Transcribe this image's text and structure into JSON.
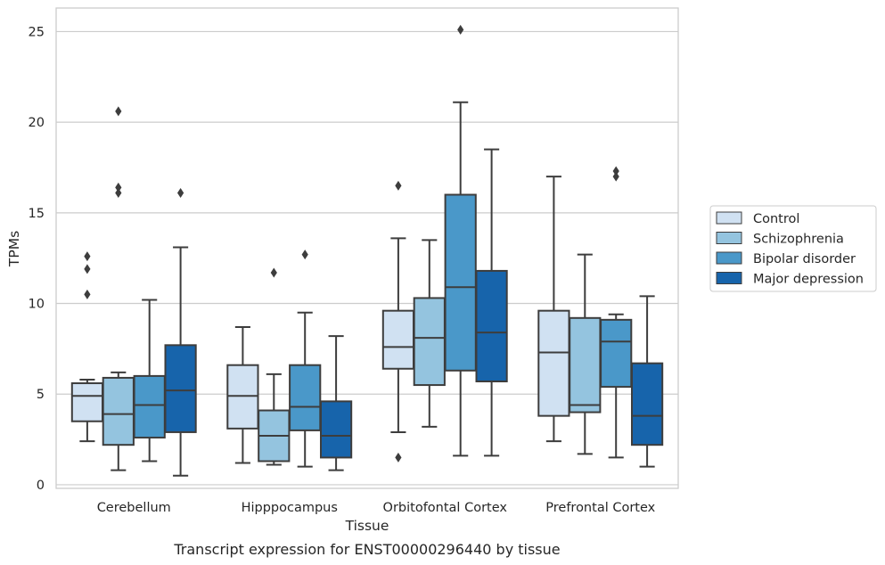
{
  "chart_data": {
    "type": "box",
    "title": "Transcript expression for ENST00000296440 by tissue",
    "xlabel": "Tissue",
    "ylabel": "TPMs",
    "ylim": [
      -0.2,
      26.3
    ],
    "yticks": [
      0,
      5,
      10,
      15,
      20,
      25
    ],
    "grid": "horizontal",
    "legend_position": "right",
    "categories": [
      "Cerebellum",
      "Hipppocampus",
      "Orbitofontal Cortex",
      "Prefrontal Cortex"
    ],
    "series": [
      {
        "name": "Control",
        "color": "#d0e1f2",
        "boxes": [
          {
            "whislo": 2.4,
            "q1": 3.5,
            "med": 4.9,
            "q3": 5.6,
            "whishi": 5.8,
            "fliers": [
              10.5,
              11.9,
              12.6
            ]
          },
          {
            "whislo": 1.2,
            "q1": 3.1,
            "med": 4.9,
            "q3": 6.6,
            "whishi": 8.7,
            "fliers": []
          },
          {
            "whislo": 2.9,
            "q1": 6.4,
            "med": 7.6,
            "q3": 9.6,
            "whishi": 13.6,
            "fliers": [
              1.5,
              16.5
            ]
          },
          {
            "whislo": 2.4,
            "q1": 3.8,
            "med": 7.3,
            "q3": 9.6,
            "whishi": 17.0,
            "fliers": []
          }
        ]
      },
      {
        "name": "Schizophrenia",
        "color": "#94c4df",
        "boxes": [
          {
            "whislo": 0.8,
            "q1": 2.2,
            "med": 3.9,
            "q3": 5.9,
            "whishi": 6.2,
            "fliers": [
              16.1,
              16.4,
              20.6
            ]
          },
          {
            "whislo": 1.1,
            "q1": 1.3,
            "med": 2.7,
            "q3": 4.1,
            "whishi": 6.1,
            "fliers": [
              11.7
            ]
          },
          {
            "whislo": 3.2,
            "q1": 5.5,
            "med": 8.1,
            "q3": 10.3,
            "whishi": 13.5,
            "fliers": []
          },
          {
            "whislo": 1.7,
            "q1": 4.0,
            "med": 4.4,
            "q3": 9.2,
            "whishi": 12.7,
            "fliers": []
          }
        ]
      },
      {
        "name": "Bipolar disorder",
        "color": "#4a98c9",
        "boxes": [
          {
            "whislo": 1.3,
            "q1": 2.6,
            "med": 4.4,
            "q3": 6.0,
            "whishi": 10.2,
            "fliers": []
          },
          {
            "whislo": 1.0,
            "q1": 3.0,
            "med": 4.3,
            "q3": 6.6,
            "whishi": 9.5,
            "fliers": [
              12.7
            ]
          },
          {
            "whislo": 1.6,
            "q1": 6.3,
            "med": 10.9,
            "q3": 16.0,
            "whishi": 21.1,
            "fliers": [
              25.1
            ]
          },
          {
            "whislo": 1.5,
            "q1": 5.4,
            "med": 7.9,
            "q3": 9.1,
            "whishi": 9.4,
            "fliers": [
              17.0,
              17.3
            ]
          }
        ]
      },
      {
        "name": "Major depression",
        "color": "#1764ab",
        "boxes": [
          {
            "whislo": 0.5,
            "q1": 2.9,
            "med": 5.2,
            "q3": 7.7,
            "whishi": 13.1,
            "fliers": [
              16.1
            ]
          },
          {
            "whislo": 0.8,
            "q1": 1.5,
            "med": 2.7,
            "q3": 4.6,
            "whishi": 8.2,
            "fliers": []
          },
          {
            "whislo": 1.6,
            "q1": 5.7,
            "med": 8.4,
            "q3": 11.8,
            "whishi": 18.5,
            "fliers": []
          },
          {
            "whislo": 1.0,
            "q1": 2.2,
            "med": 3.8,
            "q3": 6.7,
            "whishi": 10.4,
            "fliers": []
          }
        ]
      }
    ]
  }
}
